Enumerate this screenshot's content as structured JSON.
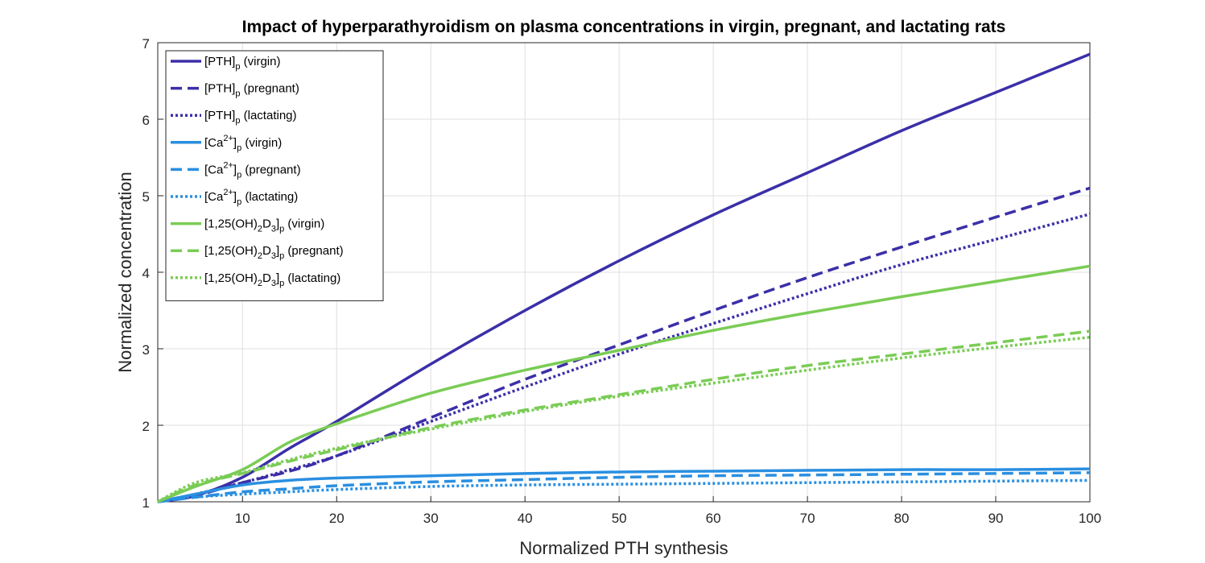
{
  "chart_data": {
    "type": "line",
    "title": "Impact of hyperparathyroidism on plasma concentrations in virgin, pregnant, and lactating rats",
    "xlabel": "Normalized PTH synthesis",
    "ylabel": "Normalized concentration",
    "xlim": [
      1,
      100
    ],
    "ylim": [
      1,
      7
    ],
    "xticks": [
      10,
      20,
      30,
      40,
      50,
      60,
      70,
      80,
      90,
      100
    ],
    "yticks": [
      1,
      2,
      3,
      4,
      5,
      6,
      7
    ],
    "grid": true,
    "legend_position": "top-left",
    "x": [
      1,
      5,
      10,
      15,
      20,
      30,
      40,
      50,
      60,
      70,
      80,
      90,
      100
    ],
    "series": [
      {
        "species": "[PTH]",
        "sub": "p",
        "name": "(virgin)",
        "color": "#3b2fa8",
        "dash": "solid",
        "values": [
          1.0,
          1.08,
          1.32,
          1.7,
          2.05,
          2.8,
          3.5,
          4.15,
          4.75,
          5.3,
          5.85,
          6.35,
          6.85
        ]
      },
      {
        "species": "[PTH]",
        "sub": "p",
        "name": "(pregnant)",
        "color": "#3b2fa8",
        "dash": "dashed",
        "values": [
          1.0,
          1.08,
          1.25,
          1.4,
          1.6,
          2.1,
          2.6,
          3.05,
          3.5,
          3.93,
          4.33,
          4.72,
          5.1
        ]
      },
      {
        "species": "[PTH]",
        "sub": "p",
        "name": "(lactating)",
        "color": "#3b2fa8",
        "dash": "dotted",
        "values": [
          1.0,
          1.1,
          1.25,
          1.42,
          1.6,
          2.05,
          2.5,
          2.93,
          3.33,
          3.72,
          4.1,
          4.43,
          4.76
        ]
      },
      {
        "species": "[Ca",
        "sup": "2+",
        "sub": "p",
        "name": "(virgin)",
        "color": "#2a8fe0",
        "dash": "solid",
        "values": [
          1.0,
          1.1,
          1.22,
          1.28,
          1.31,
          1.34,
          1.37,
          1.39,
          1.4,
          1.41,
          1.42,
          1.42,
          1.43
        ]
      },
      {
        "species": "[Ca",
        "sup": "2+",
        "sub": "p",
        "name": "(pregnant)",
        "color": "#2a8fe0",
        "dash": "dashed",
        "values": [
          1.0,
          1.06,
          1.13,
          1.17,
          1.21,
          1.26,
          1.29,
          1.32,
          1.34,
          1.35,
          1.36,
          1.37,
          1.38
        ]
      },
      {
        "species": "[Ca",
        "sup": "2+",
        "sub": "p",
        "name": "(lactating)",
        "color": "#2a8fe0",
        "dash": "dotted",
        "values": [
          1.0,
          1.06,
          1.1,
          1.13,
          1.16,
          1.2,
          1.22,
          1.23,
          1.24,
          1.25,
          1.26,
          1.27,
          1.28
        ]
      },
      {
        "species": "[1,25(OH)",
        "sub2": "2",
        "mid": "D",
        "sub3": "3",
        "sub": "p",
        "name": "(virgin)",
        "color": "#7acc55",
        "dash": "solid",
        "values": [
          1.0,
          1.2,
          1.42,
          1.78,
          2.02,
          2.42,
          2.72,
          2.98,
          3.24,
          3.47,
          3.68,
          3.88,
          4.08
        ]
      },
      {
        "species": "[1,25(OH)",
        "sub2": "2",
        "mid": "D",
        "sub3": "3",
        "sub": "p",
        "name": "(pregnant)",
        "color": "#7acc55",
        "dash": "dashed",
        "values": [
          1.0,
          1.22,
          1.37,
          1.53,
          1.68,
          1.97,
          2.2,
          2.4,
          2.6,
          2.78,
          2.93,
          3.08,
          3.23
        ]
      },
      {
        "species": "[1,25(OH)",
        "sub2": "2",
        "mid": "D",
        "sub3": "3",
        "sub": "p",
        "name": "(lactating)",
        "color": "#7acc55",
        "dash": "dotted",
        "values": [
          1.0,
          1.25,
          1.38,
          1.55,
          1.7,
          1.95,
          2.18,
          2.38,
          2.55,
          2.72,
          2.88,
          3.02,
          3.15
        ]
      }
    ]
  }
}
